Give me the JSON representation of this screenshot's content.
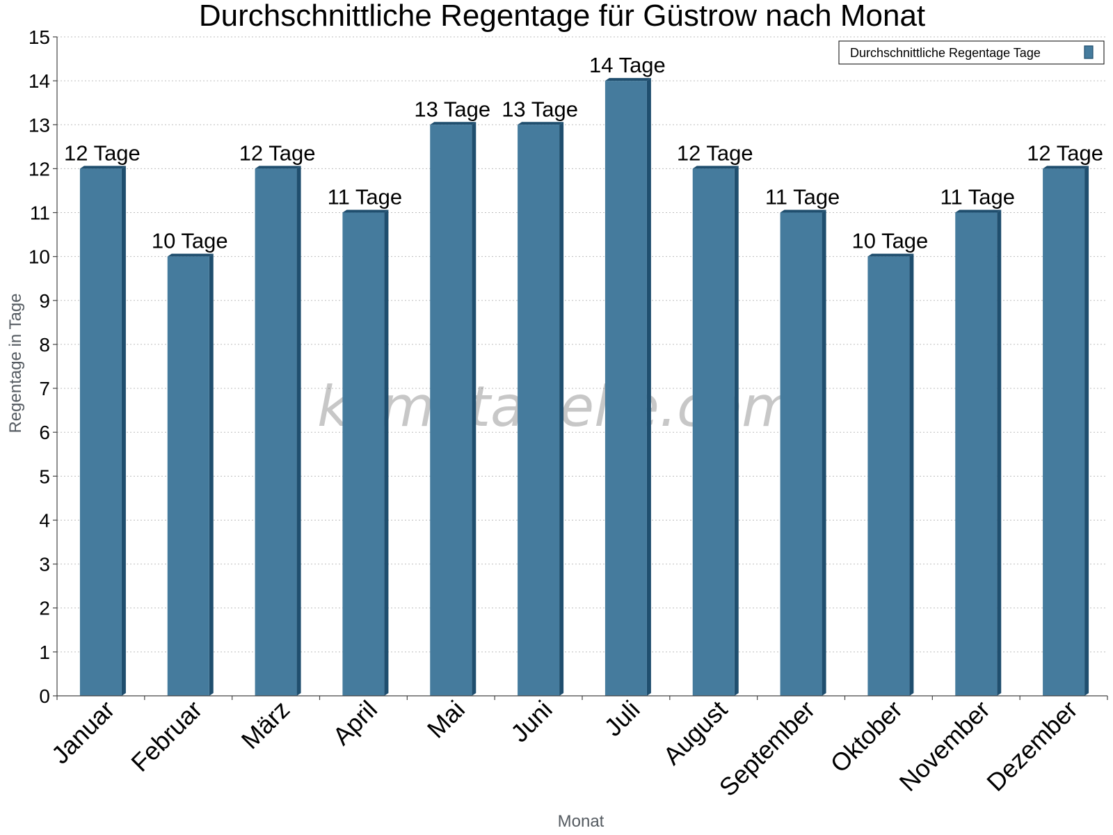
{
  "chart_data": {
    "type": "bar",
    "title": "Durchschnittliche Regentage für Güstrow nach Monat",
    "xlabel": "Monat",
    "ylabel": "Regentage in Tage",
    "ylim": [
      0,
      15
    ],
    "yticks": [
      0,
      1,
      2,
      3,
      4,
      5,
      6,
      7,
      8,
      9,
      10,
      11,
      12,
      13,
      14,
      15
    ],
    "grid": true,
    "legend_position": "top-right",
    "categories": [
      "Januar",
      "Februar",
      "März",
      "April",
      "Mai",
      "Juni",
      "Juli",
      "August",
      "September",
      "Oktober",
      "November",
      "Dezember"
    ],
    "series": [
      {
        "name": "Durchschnittliche Regentage Tage",
        "color": "#457b9d",
        "values": [
          12,
          10,
          12,
          11,
          13,
          13,
          14,
          12,
          11,
          10,
          11,
          12
        ],
        "labels": [
          "12 Tage",
          "10 Tage",
          "12 Tage",
          "11 Tage",
          "13 Tage",
          "13 Tage",
          "14 Tage",
          "12 Tage",
          "11 Tage",
          "10 Tage",
          "11 Tage",
          "12 Tage"
        ]
      }
    ],
    "watermark": "klimatabelle.com"
  }
}
